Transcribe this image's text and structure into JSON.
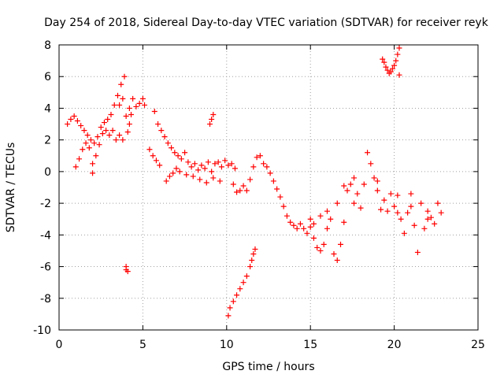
{
  "chart_data": {
    "type": "scatter",
    "title": "Day 254 of 2018, Sidereal Day-to-day VTEC variation (SDTVAR) for receiver reyk",
    "xlabel": "GPS time / hours",
    "ylabel": "SDTVAR / TECUs",
    "xlim": [
      0,
      25
    ],
    "ylim": [
      -10,
      8
    ],
    "xticks": [
      0,
      5,
      10,
      15,
      20,
      25
    ],
    "yticks": [
      -10,
      -8,
      -6,
      -4,
      -2,
      0,
      2,
      4,
      6,
      8
    ],
    "grid": true,
    "marker": "plus",
    "marker_color": "#ff0000",
    "series": [
      {
        "name": "SDTVAR",
        "points": [
          [
            0.5,
            3.0
          ],
          [
            0.7,
            3.3
          ],
          [
            0.9,
            3.5
          ],
          [
            1.1,
            3.2
          ],
          [
            1.3,
            2.9
          ],
          [
            1.5,
            2.6
          ],
          [
            1.7,
            2.3
          ],
          [
            1.9,
            2.0
          ],
          [
            2.1,
            1.8
          ],
          [
            2.3,
            2.2
          ],
          [
            2.5,
            2.8
          ],
          [
            2.7,
            3.1
          ],
          [
            2.9,
            3.3
          ],
          [
            3.1,
            3.6
          ],
          [
            3.3,
            4.2
          ],
          [
            3.5,
            4.8
          ],
          [
            3.7,
            5.5
          ],
          [
            3.9,
            6.0
          ],
          [
            4.0,
            3.5
          ],
          [
            4.1,
            2.5
          ],
          [
            4.2,
            4.0
          ],
          [
            4.4,
            4.6
          ],
          [
            4.6,
            4.1
          ],
          [
            4.8,
            4.3
          ],
          [
            5.0,
            4.6
          ],
          [
            5.1,
            4.2
          ],
          [
            1.0,
            0.3
          ],
          [
            1.2,
            0.8
          ],
          [
            1.4,
            1.4
          ],
          [
            1.6,
            1.8
          ],
          [
            1.8,
            1.5
          ],
          [
            2.0,
            0.5
          ],
          [
            2.0,
            -0.1
          ],
          [
            2.2,
            1.0
          ],
          [
            2.4,
            1.7
          ],
          [
            2.6,
            2.4
          ],
          [
            2.8,
            2.6
          ],
          [
            3.0,
            2.3
          ],
          [
            3.2,
            2.6
          ],
          [
            3.4,
            2.0
          ],
          [
            3.6,
            2.3
          ],
          [
            3.8,
            2.0
          ],
          [
            4.0,
            -6.2
          ],
          [
            4.0,
            -6.0
          ],
          [
            4.1,
            -6.3
          ],
          [
            4.2,
            3.0
          ],
          [
            4.3,
            3.6
          ],
          [
            3.6,
            4.2
          ],
          [
            3.8,
            4.6
          ],
          [
            5.7,
            3.8
          ],
          [
            5.9,
            3.0
          ],
          [
            6.1,
            2.6
          ],
          [
            6.3,
            2.2
          ],
          [
            6.5,
            1.8
          ],
          [
            6.7,
            1.5
          ],
          [
            6.9,
            1.2
          ],
          [
            7.1,
            1.0
          ],
          [
            7.3,
            0.8
          ],
          [
            7.5,
            1.2
          ],
          [
            7.7,
            0.6
          ],
          [
            7.9,
            0.3
          ],
          [
            8.1,
            0.5
          ],
          [
            8.3,
            0.1
          ],
          [
            8.5,
            0.4
          ],
          [
            8.7,
            0.2
          ],
          [
            8.9,
            0.6
          ],
          [
            9.1,
            0.0
          ],
          [
            9.3,
            0.5
          ],
          [
            9.5,
            0.6
          ],
          [
            9.7,
            0.3
          ],
          [
            9.9,
            0.7
          ],
          [
            10.1,
            0.4
          ],
          [
            10.3,
            0.5
          ],
          [
            10.5,
            0.2
          ],
          [
            5.4,
            1.4
          ],
          [
            5.6,
            1.0
          ],
          [
            5.8,
            0.7
          ],
          [
            6.0,
            0.4
          ],
          [
            6.4,
            -0.6
          ],
          [
            6.6,
            -0.3
          ],
          [
            6.8,
            -0.1
          ],
          [
            7.0,
            0.2
          ],
          [
            7.2,
            0.0
          ],
          [
            7.6,
            -0.2
          ],
          [
            8.0,
            -0.3
          ],
          [
            8.4,
            -0.5
          ],
          [
            8.8,
            -0.7
          ],
          [
            9.2,
            -0.4
          ],
          [
            9.6,
            -0.6
          ],
          [
            9.0,
            3.0
          ],
          [
            9.1,
            3.3
          ],
          [
            9.2,
            3.6
          ],
          [
            10.1,
            -9.1
          ],
          [
            10.2,
            -8.6
          ],
          [
            10.4,
            -8.2
          ],
          [
            10.6,
            -7.8
          ],
          [
            10.8,
            -7.4
          ],
          [
            11.0,
            -7.0
          ],
          [
            11.2,
            -6.6
          ],
          [
            11.4,
            -6.0
          ],
          [
            11.5,
            -5.6
          ],
          [
            11.6,
            -5.2
          ],
          [
            11.7,
            -4.9
          ],
          [
            10.4,
            -0.8
          ],
          [
            10.6,
            -1.3
          ],
          [
            10.8,
            -1.2
          ],
          [
            11.0,
            -0.9
          ],
          [
            11.2,
            -1.2
          ],
          [
            11.4,
            -0.5
          ],
          [
            11.6,
            0.3
          ],
          [
            11.8,
            0.9
          ],
          [
            12.0,
            1.0
          ],
          [
            12.2,
            0.5
          ],
          [
            12.4,
            0.3
          ],
          [
            12.6,
            -0.1
          ],
          [
            12.8,
            -0.6
          ],
          [
            13.0,
            -1.1
          ],
          [
            13.2,
            -1.6
          ],
          [
            13.4,
            -2.2
          ],
          [
            13.6,
            -2.8
          ],
          [
            13.8,
            -3.2
          ],
          [
            14.0,
            -3.4
          ],
          [
            14.2,
            -3.6
          ],
          [
            14.4,
            -3.3
          ],
          [
            14.6,
            -3.6
          ],
          [
            14.8,
            -3.9
          ],
          [
            15.0,
            -3.5
          ],
          [
            15.2,
            -4.2
          ],
          [
            15.4,
            -4.8
          ],
          [
            15.6,
            -5.0
          ],
          [
            15.8,
            -4.6
          ],
          [
            16.0,
            -3.6
          ],
          [
            16.2,
            -3.0
          ],
          [
            16.4,
            -5.2
          ],
          [
            16.6,
            -5.6
          ],
          [
            16.8,
            -4.6
          ],
          [
            17.0,
            -3.2
          ],
          [
            17.2,
            -1.2
          ],
          [
            17.4,
            -0.8
          ],
          [
            17.6,
            -2.0
          ],
          [
            17.8,
            -1.4
          ],
          [
            18.0,
            -2.3
          ],
          [
            18.2,
            -0.8
          ],
          [
            18.4,
            1.2
          ],
          [
            18.6,
            0.5
          ],
          [
            18.8,
            -0.4
          ],
          [
            19.0,
            -1.2
          ],
          [
            19.2,
            -2.4
          ],
          [
            19.4,
            -1.8
          ],
          [
            19.6,
            -2.5
          ],
          [
            19.8,
            -1.4
          ],
          [
            20.0,
            -2.2
          ],
          [
            20.2,
            -1.5
          ],
          [
            20.4,
            -3.0
          ],
          [
            20.6,
            -3.9
          ],
          [
            20.8,
            -2.6
          ],
          [
            21.0,
            -2.2
          ],
          [
            21.2,
            -3.4
          ],
          [
            21.4,
            -5.1
          ],
          [
            21.6,
            -2.0
          ],
          [
            21.8,
            -3.6
          ],
          [
            22.0,
            -2.5
          ],
          [
            22.2,
            -2.9
          ],
          [
            22.4,
            -3.3
          ],
          [
            22.6,
            -2.0
          ],
          [
            22.8,
            -2.6
          ],
          [
            15.0,
            -3.0
          ],
          [
            15.2,
            -3.3
          ],
          [
            15.6,
            -2.8
          ],
          [
            16.0,
            -2.5
          ],
          [
            16.6,
            -2.0
          ],
          [
            17.0,
            -0.9
          ],
          [
            17.6,
            -0.4
          ],
          [
            19.0,
            -0.6
          ],
          [
            20.2,
            -2.6
          ],
          [
            21.0,
            -1.4
          ],
          [
            22.0,
            -3.0
          ],
          [
            19.3,
            7.1
          ],
          [
            19.4,
            6.9
          ],
          [
            19.5,
            6.6
          ],
          [
            19.6,
            6.4
          ],
          [
            19.7,
            6.2
          ],
          [
            19.8,
            6.3
          ],
          [
            19.9,
            6.5
          ],
          [
            20.0,
            6.7
          ],
          [
            20.1,
            7.0
          ],
          [
            20.2,
            7.4
          ],
          [
            20.3,
            7.8
          ],
          [
            20.3,
            6.1
          ]
        ]
      }
    ]
  }
}
